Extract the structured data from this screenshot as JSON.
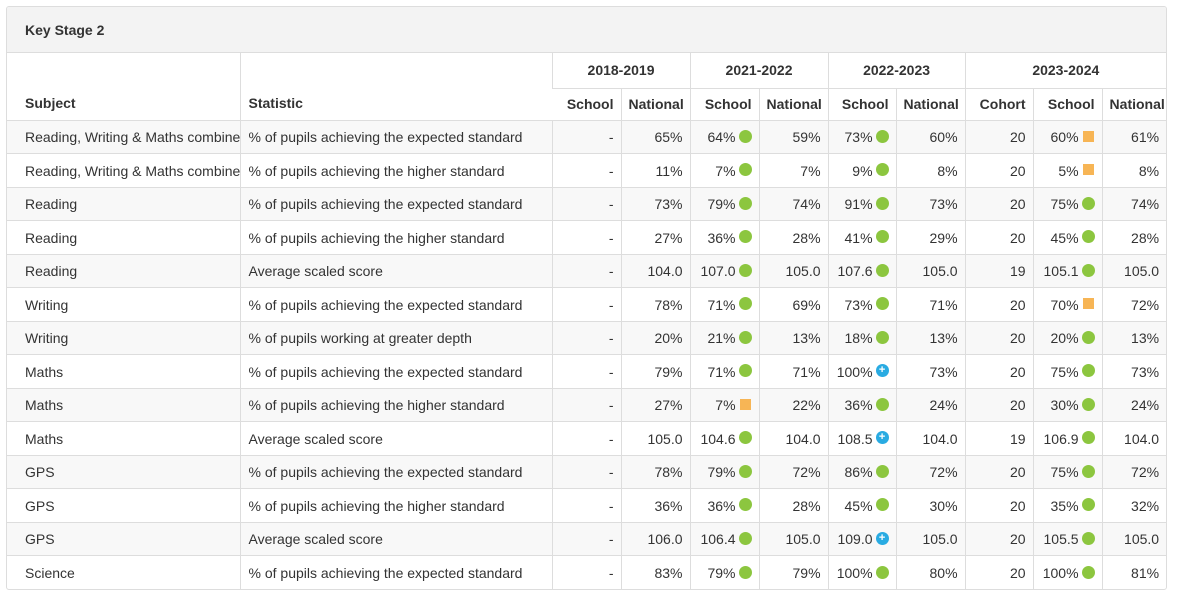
{
  "panel": {
    "title": "Key Stage 2"
  },
  "header": {
    "subject": "Subject",
    "statistic": "Statistic",
    "years": [
      "2018-2019",
      "2021-2022",
      "2022-2023",
      "2023-2024"
    ],
    "school": "School",
    "national": "National",
    "cohort": "Cohort"
  },
  "indicator_colors": {
    "green": "#8cc63f",
    "amber": "#f7b555",
    "blue": "#29abe2"
  },
  "rows": [
    {
      "subject": "Reading, Writing & Maths combined",
      "statistic": "% of pupils achieving the expected standard",
      "s2019": "-",
      "n2019": "65%",
      "s2022": "64%",
      "i2022": "green",
      "n2022": "59%",
      "s2023": "73%",
      "i2023": "green",
      "n2023": "60%",
      "cohort": "20",
      "s2024": "60%",
      "i2024": "amber",
      "n2024": "61%"
    },
    {
      "subject": "Reading, Writing & Maths combined",
      "statistic": "% of pupils achieving the higher standard",
      "s2019": "-",
      "n2019": "11%",
      "s2022": "7%",
      "i2022": "green",
      "n2022": "7%",
      "s2023": "9%",
      "i2023": "green",
      "n2023": "8%",
      "cohort": "20",
      "s2024": "5%",
      "i2024": "amber",
      "n2024": "8%"
    },
    {
      "subject": "Reading",
      "statistic": "% of pupils achieving the expected standard",
      "s2019": "-",
      "n2019": "73%",
      "s2022": "79%",
      "i2022": "green",
      "n2022": "74%",
      "s2023": "91%",
      "i2023": "green",
      "n2023": "73%",
      "cohort": "20",
      "s2024": "75%",
      "i2024": "green",
      "n2024": "74%"
    },
    {
      "subject": "Reading",
      "statistic": "% of pupils achieving the higher standard",
      "s2019": "-",
      "n2019": "27%",
      "s2022": "36%",
      "i2022": "green",
      "n2022": "28%",
      "s2023": "41%",
      "i2023": "green",
      "n2023": "29%",
      "cohort": "20",
      "s2024": "45%",
      "i2024": "green",
      "n2024": "28%"
    },
    {
      "subject": "Reading",
      "statistic": "Average scaled score",
      "s2019": "-",
      "n2019": "104.0",
      "s2022": "107.0",
      "i2022": "green",
      "n2022": "105.0",
      "s2023": "107.6",
      "i2023": "green",
      "n2023": "105.0",
      "cohort": "19",
      "s2024": "105.1",
      "i2024": "green",
      "n2024": "105.0"
    },
    {
      "subject": "Writing",
      "statistic": "% of pupils achieving the expected standard",
      "s2019": "-",
      "n2019": "78%",
      "s2022": "71%",
      "i2022": "green",
      "n2022": "69%",
      "s2023": "73%",
      "i2023": "green",
      "n2023": "71%",
      "cohort": "20",
      "s2024": "70%",
      "i2024": "amber",
      "n2024": "72%"
    },
    {
      "subject": "Writing",
      "statistic": "% of pupils working at greater depth",
      "s2019": "-",
      "n2019": "20%",
      "s2022": "21%",
      "i2022": "green",
      "n2022": "13%",
      "s2023": "18%",
      "i2023": "green",
      "n2023": "13%",
      "cohort": "20",
      "s2024": "20%",
      "i2024": "green",
      "n2024": "13%"
    },
    {
      "subject": "Maths",
      "statistic": "% of pupils achieving the expected standard",
      "s2019": "-",
      "n2019": "79%",
      "s2022": "71%",
      "i2022": "green",
      "n2022": "71%",
      "s2023": "100%",
      "i2023": "blue",
      "n2023": "73%",
      "cohort": "20",
      "s2024": "75%",
      "i2024": "green",
      "n2024": "73%"
    },
    {
      "subject": "Maths",
      "statistic": "% of pupils achieving the higher standard",
      "s2019": "-",
      "n2019": "27%",
      "s2022": "7%",
      "i2022": "amber",
      "n2022": "22%",
      "s2023": "36%",
      "i2023": "green",
      "n2023": "24%",
      "cohort": "20",
      "s2024": "30%",
      "i2024": "green",
      "n2024": "24%"
    },
    {
      "subject": "Maths",
      "statistic": "Average scaled score",
      "s2019": "-",
      "n2019": "105.0",
      "s2022": "104.6",
      "i2022": "green",
      "n2022": "104.0",
      "s2023": "108.5",
      "i2023": "blue",
      "n2023": "104.0",
      "cohort": "19",
      "s2024": "106.9",
      "i2024": "green",
      "n2024": "104.0"
    },
    {
      "subject": "GPS",
      "statistic": "% of pupils achieving the expected standard",
      "s2019": "-",
      "n2019": "78%",
      "s2022": "79%",
      "i2022": "green",
      "n2022": "72%",
      "s2023": "86%",
      "i2023": "green",
      "n2023": "72%",
      "cohort": "20",
      "s2024": "75%",
      "i2024": "green",
      "n2024": "72%"
    },
    {
      "subject": "GPS",
      "statistic": "% of pupils achieving the higher standard",
      "s2019": "-",
      "n2019": "36%",
      "s2022": "36%",
      "i2022": "green",
      "n2022": "28%",
      "s2023": "45%",
      "i2023": "green",
      "n2023": "30%",
      "cohort": "20",
      "s2024": "35%",
      "i2024": "green",
      "n2024": "32%"
    },
    {
      "subject": "GPS",
      "statistic": "Average scaled score",
      "s2019": "-",
      "n2019": "106.0",
      "s2022": "106.4",
      "i2022": "green",
      "n2022": "105.0",
      "s2023": "109.0",
      "i2023": "blue",
      "n2023": "105.0",
      "cohort": "20",
      "s2024": "105.5",
      "i2024": "green",
      "n2024": "105.0"
    },
    {
      "subject": "Science",
      "statistic": "% of pupils achieving the expected standard",
      "s2019": "-",
      "n2019": "83%",
      "s2022": "79%",
      "i2022": "green",
      "n2022": "79%",
      "s2023": "100%",
      "i2023": "green",
      "n2023": "80%",
      "cohort": "20",
      "s2024": "100%",
      "i2024": "green",
      "n2024": "81%"
    }
  ]
}
